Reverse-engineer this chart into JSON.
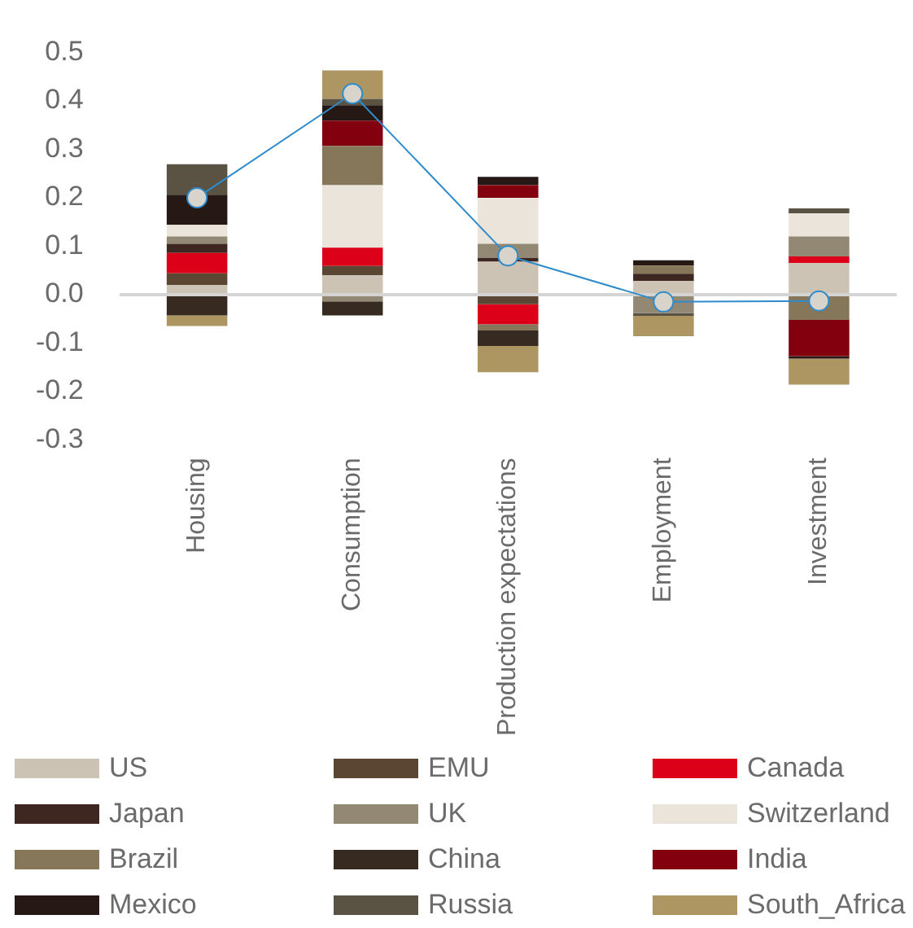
{
  "chart_data": {
    "type": "bar",
    "stacked": true,
    "legend": "bottom",
    "categories": [
      "Housing",
      "Consumption",
      "Production expectations",
      "Employment",
      "Investment"
    ],
    "ylim": [
      -0.3,
      0.5
    ],
    "yticks": [
      -0.3,
      -0.2,
      -0.1,
      {
        "value": 0,
        "label": "0.0"
      },
      0.1,
      0.2,
      0.3,
      0.4,
      0.5
    ],
    "series": [
      {
        "name": "US",
        "color": "#cdc3b5",
        "values": [
          0.02,
          0.04,
          0.068,
          0.028,
          0.065
        ]
      },
      {
        "name": "EMU",
        "color": "#5a4633",
        "values": [
          0.024,
          0.019,
          -0.02,
          null,
          null
        ]
      },
      {
        "name": "Canada",
        "color": "#dc0018",
        "values": [
          0.042,
          0.038,
          -0.041,
          null,
          0.014
        ]
      },
      {
        "name": "Japan",
        "color": "#3d2720",
        "values": [
          0.019,
          null,
          0.008,
          0.015,
          null
        ]
      },
      {
        "name": "UK",
        "color": "#938873",
        "values": [
          0.015,
          -0.014,
          0.029,
          -0.038,
          0.041
        ]
      },
      {
        "name": "Switzerland",
        "color": "#ebe4da",
        "values": [
          0.024,
          0.129,
          0.095,
          null,
          0.048
        ]
      },
      {
        "name": "Brazil",
        "color": "#86765a",
        "values": [
          null,
          0.081,
          -0.013,
          0.017,
          -0.052
        ]
      },
      {
        "name": "China",
        "color": "#372b21",
        "values": [
          -0.043,
          -0.029,
          -0.032,
          null,
          null
        ]
      },
      {
        "name": "India",
        "color": "#83000f",
        "values": [
          null,
          0.052,
          0.026,
          null,
          -0.075
        ]
      },
      {
        "name": "Mexico",
        "color": "#261915",
        "values": [
          0.062,
          0.032,
          0.017,
          0.011,
          -0.005
        ]
      },
      {
        "name": "Russia",
        "color": "#5a5242",
        "values": [
          0.063,
          0.013,
          null,
          -0.006,
          0.01
        ]
      },
      {
        "name": "South_Africa",
        "color": "#ae9662",
        "values": [
          -0.022,
          0.059,
          -0.054,
          -0.042,
          -0.054
        ]
      },
      {
        "type": "line",
        "marker": "circle",
        "color": "#2f8ccc",
        "values": [
          0.2,
          0.415,
          0.08,
          -0.015,
          -0.013
        ]
      }
    ]
  }
}
